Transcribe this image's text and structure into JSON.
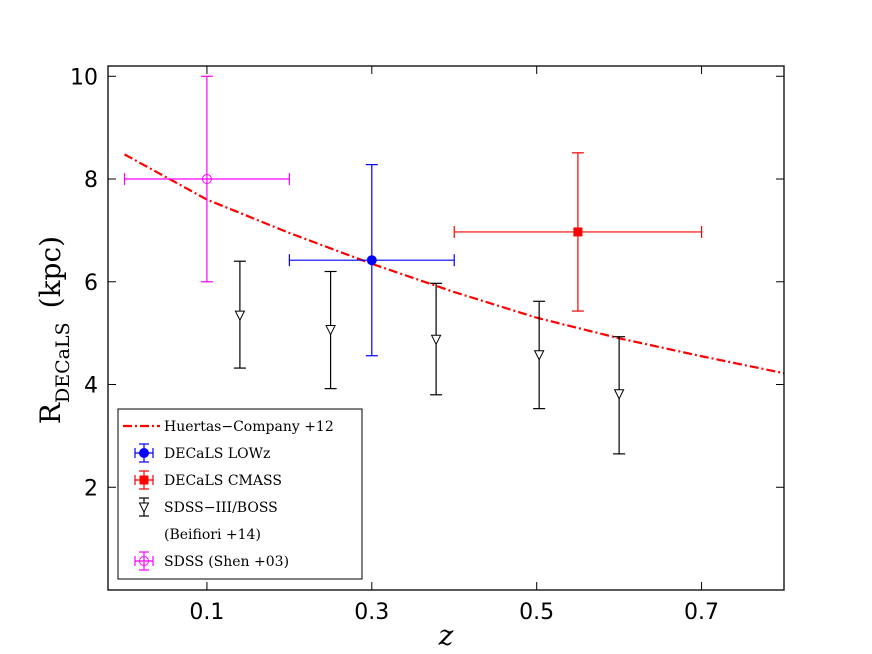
{
  "chart_data": {
    "type": "scatter",
    "title": "",
    "xlabel": "z",
    "ylabel_main": "R",
    "ylabel_sub": "DECaLS",
    "ylabel_unit": "(kpc)",
    "xlim": [
      -0.02,
      0.8
    ],
    "ylim": [
      0,
      10.2
    ],
    "xticks": [
      0.1,
      0.3,
      0.5,
      0.7
    ],
    "xtick_labels": [
      "0.1",
      "0.3",
      "0.5",
      "0.7"
    ],
    "yticks": [
      2,
      4,
      6,
      8,
      10
    ],
    "ytick_labels": [
      "2",
      "4",
      "6",
      "8",
      "10"
    ],
    "grid": false,
    "legend_position": "lower-left",
    "series": [
      {
        "name": "Huertas−Company +12",
        "kind": "line",
        "color": "#ff0000",
        "x": [
          0.0,
          0.1,
          0.2,
          0.3,
          0.4,
          0.5,
          0.6,
          0.7,
          0.8
        ],
        "y": [
          8.48,
          7.6,
          6.95,
          6.35,
          5.8,
          5.3,
          4.9,
          4.55,
          4.22
        ]
      },
      {
        "name": "DECaLS  LOWz",
        "kind": "errorbar",
        "marker": "circle-filled",
        "color": "#0000ff",
        "points": [
          {
            "x": 0.3,
            "y": 6.42,
            "xerr": 0.1,
            "ylo": 4.56,
            "yhi": 8.28
          }
        ]
      },
      {
        "name": "DECaLS  CMASS",
        "kind": "errorbar",
        "marker": "square-filled",
        "color": "#ff0000",
        "points": [
          {
            "x": 0.55,
            "y": 6.97,
            "xerr": 0.15,
            "ylo": 5.43,
            "yhi": 8.51
          }
        ]
      },
      {
        "name": "SDSS−III/BOSS",
        "name_line2": "(Beifiori +14)",
        "kind": "errorbar",
        "marker": "triangle-down-open",
        "color": "#000000",
        "points": [
          {
            "x": 0.14,
            "y": 5.35,
            "xerr": 0,
            "ylo": 4.32,
            "yhi": 6.4
          },
          {
            "x": 0.25,
            "y": 5.07,
            "xerr": 0,
            "ylo": 3.92,
            "yhi": 6.2
          },
          {
            "x": 0.378,
            "y": 4.88,
            "xerr": 0,
            "ylo": 3.8,
            "yhi": 5.97
          },
          {
            "x": 0.503,
            "y": 4.58,
            "xerr": 0,
            "ylo": 3.53,
            "yhi": 5.62
          },
          {
            "x": 0.6,
            "y": 3.82,
            "xerr": 0,
            "ylo": 2.65,
            "yhi": 4.93
          }
        ]
      },
      {
        "name": "SDSS (Shen +03)",
        "kind": "errorbar",
        "marker": "circle-open",
        "color": "#ff00ff",
        "points": [
          {
            "x": 0.1,
            "y": 8.0,
            "xerr": 0.1,
            "ylo": 6.0,
            "yhi": 10.0
          }
        ]
      }
    ]
  }
}
